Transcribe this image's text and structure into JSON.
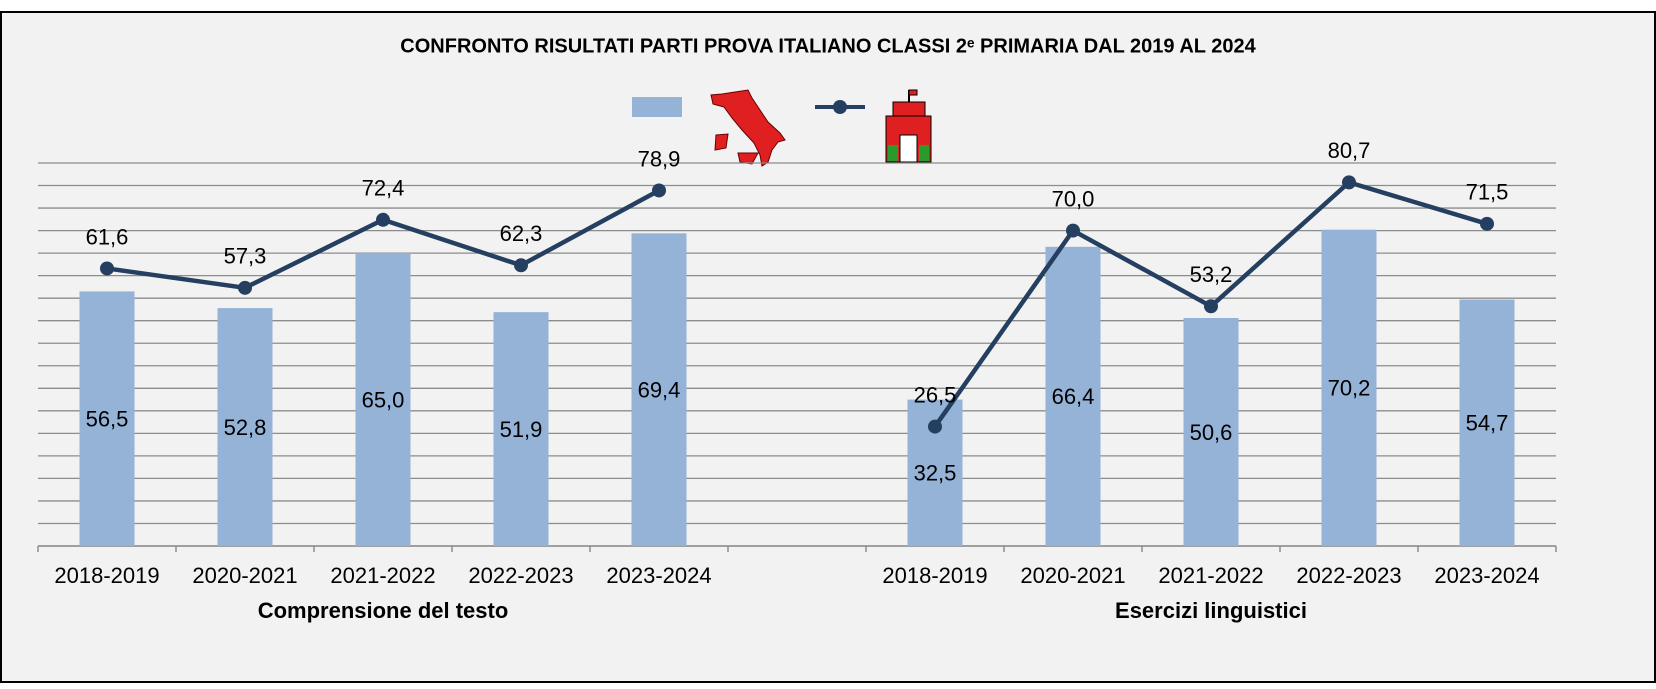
{
  "chart_data": {
    "type": "combo",
    "title": "CONFRONTO RISULTATI PARTI PROVA ITALIANO CLASSI 2ᵉ PRIMARIA DAL 2019 AL 2024",
    "categories": [
      "2018-2019",
      "2020-2021",
      "2021-2022",
      "2022-2023",
      "2023-2024",
      null,
      "2018-2019",
      "2020-2021",
      "2021-2022",
      "2022-2023",
      "2023-2024"
    ],
    "groups": [
      {
        "label": "Comprensione del testo",
        "span": [
          0,
          4
        ]
      },
      {
        "label": "Esercizi linguistici",
        "span": [
          6,
          10
        ]
      }
    ],
    "series": [
      {
        "type": "bar",
        "color": "#95b3d7",
        "values": [
          56.5,
          52.8,
          65.0,
          51.9,
          69.4,
          null,
          32.5,
          66.4,
          50.6,
          70.2,
          54.7
        ],
        "value_labels": [
          "56,5",
          "52,8",
          "65,0",
          "51,9",
          "69,4",
          null,
          "32,5",
          "66,4",
          "50,6",
          "70,2",
          "54,7"
        ]
      },
      {
        "type": "line",
        "color": "#243f60",
        "values": [
          61.6,
          57.3,
          72.4,
          62.3,
          78.9,
          null,
          26.5,
          70.0,
          53.2,
          80.7,
          71.5
        ],
        "value_labels": [
          "61,6",
          "57,3",
          "72,4",
          "62,3",
          "78,9",
          null,
          "26,5",
          "70,0",
          "53,2",
          "80,7",
          "71,5"
        ]
      }
    ],
    "ylim": [
      0,
      85
    ],
    "yticks": [
      0,
      5,
      10,
      15,
      20,
      25,
      30,
      35,
      40,
      45,
      50,
      55,
      60,
      65,
      70,
      75,
      80,
      85
    ],
    "grid": true
  }
}
